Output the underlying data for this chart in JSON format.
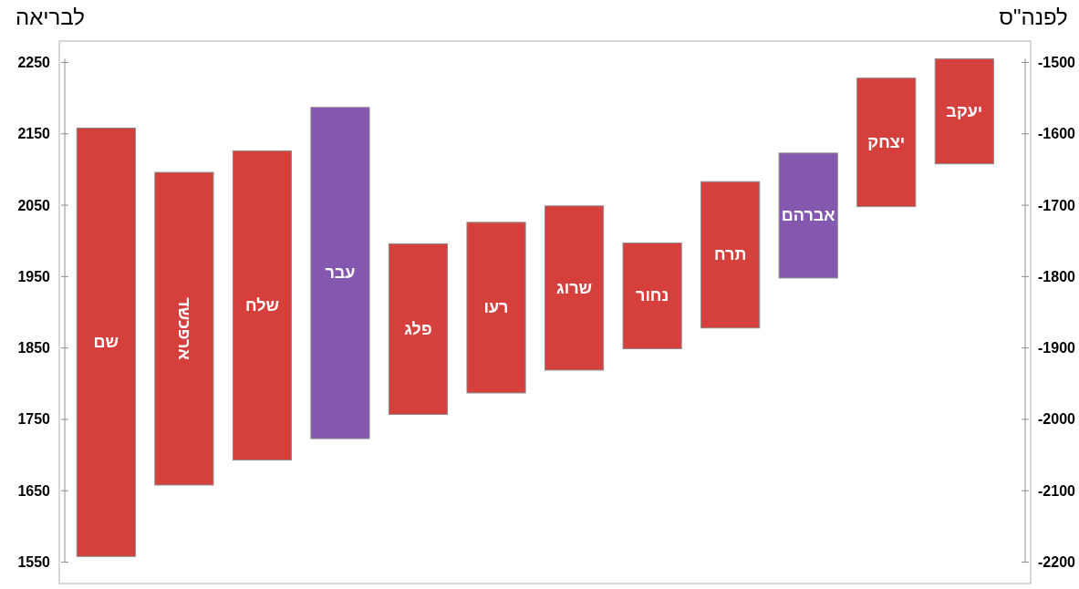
{
  "chart_data": {
    "type": "bar",
    "ylabel": "לבריאה",
    "y2label": "לפנה\"ס",
    "categories": [
      "שם",
      "ארפכשד",
      "שלח",
      "עבר",
      "פלג",
      "רעו",
      "שרוג",
      "נחור",
      "תרח",
      "אברהם",
      "יצחק",
      "יעקב"
    ],
    "base": [
      1558,
      1658,
      1693,
      1723,
      1757,
      1787,
      1819,
      1849,
      1878,
      1948,
      2048,
      2108
    ],
    "values": [
      600,
      438,
      433,
      464,
      239,
      239,
      230,
      148,
      205,
      175,
      180,
      147
    ],
    "colors": [
      "#d6403c",
      "#d6403c",
      "#d6403c",
      "#8458ae",
      "#d6403c",
      "#d6403c",
      "#d6403c",
      "#d6403c",
      "#d6403c",
      "#8458ae",
      "#d6403c",
      "#d6403c"
    ],
    "ylim": [
      1520,
      2280
    ],
    "yticks": [
      1550,
      1650,
      1750,
      1850,
      1950,
      2050,
      2150,
      2250
    ],
    "y2lim": [
      -2230,
      -1470
    ],
    "y2ticks": [
      -2200,
      -2100,
      -2000,
      -1900,
      -1800,
      -1700,
      -1600,
      -1500
    ]
  }
}
